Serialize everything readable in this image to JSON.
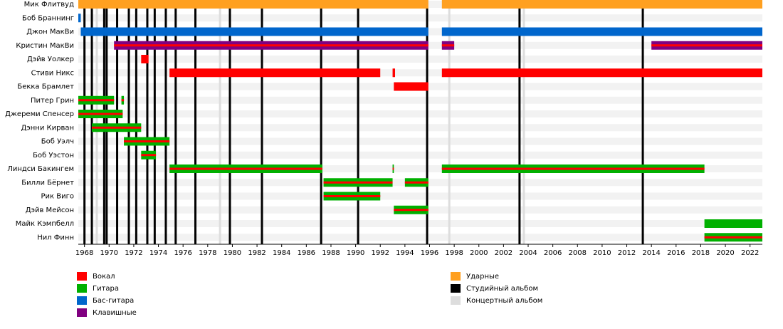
{
  "chart_data": {
    "type": "timeline",
    "xlim": [
      1967.5,
      2023
    ],
    "xticks": [
      1968,
      1970,
      1972,
      1974,
      1976,
      1978,
      1980,
      1982,
      1984,
      1986,
      1988,
      1990,
      1992,
      1994,
      1996,
      1998,
      2000,
      2002,
      2004,
      2006,
      2008,
      2010,
      2012,
      2014,
      2016,
      2018,
      2020,
      2022
    ],
    "roles": [
      {
        "name": "Вокал",
        "color": "#ff0000"
      },
      {
        "name": "Гитара",
        "color": "#00b000"
      },
      {
        "name": "Бас-гитара",
        "color": "#0066cc"
      },
      {
        "name": "Клавишные",
        "color": "#800080"
      },
      {
        "name": "Ударные",
        "color": "#ffa020"
      }
    ],
    "albums": [
      {
        "name": "Студийный альбом",
        "color": "#000000",
        "years": [
          1968,
          1968.6,
          1969.6,
          1969.8,
          1970.65,
          1971.6,
          1972.2,
          1973.1,
          1973.7,
          1974.6,
          1975.4,
          1977,
          1979.8,
          1982.4,
          1987.2,
          1990.2,
          1995.8,
          2003.3,
          2013.3
        ]
      },
      {
        "name": "Концертный альбом",
        "color": "#dddddd",
        "years": [
          1969,
          1979,
          1997.6,
          2003.65
        ]
      }
    ],
    "members": [
      {
        "name": "Мик Флитвуд",
        "bars": [
          {
            "start": 1967.5,
            "end": 1995.9,
            "role": "Ударные"
          },
          {
            "start": 1997,
            "end": 2023,
            "role": "Ударные"
          }
        ]
      },
      {
        "name": "Боб Браннинг",
        "bars": [
          {
            "start": 1967.5,
            "end": 1967.7,
            "role": "Бас-гитара"
          }
        ]
      },
      {
        "name": "Джон МакВи",
        "bars": [
          {
            "start": 1967.7,
            "end": 1995.9,
            "role": "Бас-гитара"
          },
          {
            "start": 1997,
            "end": 2023,
            "role": "Бас-гитара"
          }
        ]
      },
      {
        "name": "Кристин МакВи",
        "bars": [
          {
            "start": 1970.4,
            "end": 1995.9,
            "role": "Клавишные",
            "stripe": "Вокал"
          },
          {
            "start": 1997,
            "end": 1998,
            "role": "Клавишные",
            "stripe": "Вокал"
          },
          {
            "start": 2014,
            "end": 2023,
            "role": "Клавишные",
            "stripe": "Вокал"
          }
        ]
      },
      {
        "name": "Дэйв Уолкер",
        "bars": [
          {
            "start": 1972.6,
            "end": 1973.2,
            "role": "Вокал"
          }
        ]
      },
      {
        "name": "Стиви Никс",
        "bars": [
          {
            "start": 1974.9,
            "end": 1992,
            "role": "Вокал"
          },
          {
            "start": 1993,
            "end": 1993.2,
            "role": "Вокал"
          },
          {
            "start": 1997,
            "end": 2023,
            "role": "Вокал"
          }
        ]
      },
      {
        "name": "Бекка Брамлет",
        "bars": [
          {
            "start": 1993.1,
            "end": 1995.9,
            "role": "Вокал"
          }
        ]
      },
      {
        "name": "Питер Грин",
        "bars": [
          {
            "start": 1967.5,
            "end": 1970.4,
            "role": "Гитара",
            "stripe": "Вокал"
          },
          {
            "start": 1971,
            "end": 1971.2,
            "role": "Гитара",
            "stripe": "Вокал"
          }
        ]
      },
      {
        "name": "Джереми Спенсер",
        "bars": [
          {
            "start": 1967.5,
            "end": 1971.1,
            "role": "Гитара",
            "stripe": "Вокал"
          }
        ]
      },
      {
        "name": "Дэнни Кирван",
        "bars": [
          {
            "start": 1968.6,
            "end": 1972.6,
            "role": "Гитара",
            "stripe": "Вокал"
          }
        ]
      },
      {
        "name": "Боб Уэлч",
        "bars": [
          {
            "start": 1971.2,
            "end": 1974.9,
            "role": "Гитара",
            "stripe": "Вокал"
          }
        ]
      },
      {
        "name": "Боб Уэстон",
        "bars": [
          {
            "start": 1972.6,
            "end": 1973.8,
            "role": "Гитара",
            "stripe": "Вокал"
          }
        ]
      },
      {
        "name": "Линдси Бакингем",
        "bars": [
          {
            "start": 1974.9,
            "end": 1987.3,
            "role": "Гитара",
            "stripe": "Вокал"
          },
          {
            "start": 1993,
            "end": 1993.1,
            "role": "Гитара",
            "stripe": "Вокал"
          },
          {
            "start": 1997,
            "end": 2018.3,
            "role": "Гитара",
            "stripe": "Вокал"
          }
        ]
      },
      {
        "name": "Билли Бёрнет",
        "bars": [
          {
            "start": 1987.4,
            "end": 1993,
            "role": "Гитара",
            "stripe": "Вокал"
          },
          {
            "start": 1994,
            "end": 1995.9,
            "role": "Гитара",
            "stripe": "Вокал"
          }
        ]
      },
      {
        "name": "Рик Виго",
        "bars": [
          {
            "start": 1987.4,
            "end": 1992,
            "role": "Гитара",
            "stripe": "Вокал"
          }
        ]
      },
      {
        "name": "Дэйв Мейсон",
        "bars": [
          {
            "start": 1993.1,
            "end": 1995.9,
            "role": "Гитара",
            "stripe": "Вокал"
          }
        ]
      },
      {
        "name": "Майк Кэмпбелл",
        "bars": [
          {
            "start": 2018.3,
            "end": 2023,
            "role": "Гитара"
          }
        ]
      },
      {
        "name": "Нил Финн",
        "bars": [
          {
            "start": 2018.3,
            "end": 2023,
            "role": "Гитара",
            "stripe": "Вокал"
          }
        ]
      }
    ]
  }
}
